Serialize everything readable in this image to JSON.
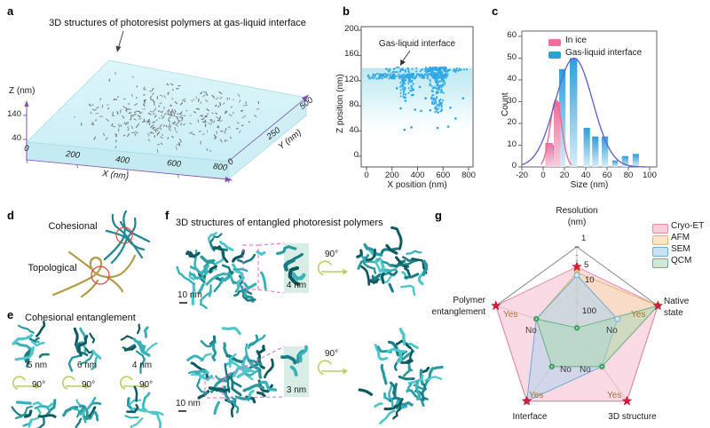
{
  "panels": {
    "a": {
      "letter": "a",
      "title": "3D structures of photoresist polymers at gas-liquid interface",
      "z_axis": {
        "label": "Z (nm)",
        "ticks": [
          "140",
          "40"
        ]
      },
      "x_axis": {
        "label": "X (nm)",
        "ticks": [
          "0",
          "200",
          "400",
          "600",
          "800"
        ]
      },
      "y_axis": {
        "label": "Y (nm)",
        "ticks": [
          "0",
          "250",
          "500"
        ]
      }
    },
    "b": {
      "letter": "b",
      "annotation": "Gas-liquid interface",
      "y_label": "Z position (nm)",
      "y_ticks": [
        "200",
        "160",
        "120",
        "80",
        "40",
        "0"
      ],
      "x_label": "X position (nm)",
      "x_ticks": [
        "0",
        "200",
        "400",
        "600",
        "800"
      ]
    },
    "c": {
      "letter": "c",
      "y_label": "Count",
      "y_ticks": [
        "60",
        "50",
        "40",
        "30",
        "20",
        "10",
        "0"
      ],
      "x_label": "Size (nm)",
      "x_ticks": [
        "-20",
        "0",
        "20",
        "40",
        "60",
        "80",
        "100"
      ]
    },
    "d": {
      "letter": "d",
      "label_cohesional": "Cohesional",
      "label_topological": "Topological"
    },
    "e": {
      "letter": "e",
      "title": "Cohesional entanglement",
      "rotation_label": "90°",
      "sizes": [
        "5 nm",
        "6 nm",
        "4 nm"
      ]
    },
    "f": {
      "letter": "f",
      "title": "3D structures of entangled photoresist polymers",
      "rotation_label": "90°",
      "scale_label": "10 nm",
      "inset_labels": [
        "4 nm",
        "3 nm"
      ]
    },
    "g": {
      "letter": "g",
      "axis_titles": {
        "resolution_1": "Resolution",
        "resolution_2": "(nm)",
        "native_1": "Native",
        "native_2": "state",
        "polymer_1": "Polymer",
        "polymer_2": "entanglement",
        "interface": "Interface",
        "structure3d": "3D structure"
      }
    }
  },
  "chart_data": [
    {
      "id": "a",
      "type": "scatter",
      "subtype": "3d-surface-view",
      "title": "3D structures of photoresist polymers at gas-liquid interface",
      "xlabel": "X (nm)",
      "xticks": [
        0,
        200,
        400,
        600,
        800
      ],
      "ylabel": "Y (nm)",
      "yticks": [
        0,
        250,
        500
      ],
      "zlabel": "Z (nm)",
      "zticks": [
        140,
        40
      ],
      "description": "Cyan slab (ice layer) viewed in perspective with ~300 gray polymer specks scattered over its top surface",
      "speck_count": 300,
      "slab_color": "#d9f4f8",
      "speck_colors": [
        "#8a8a8a",
        "#6e6e6e",
        "#9c9c9c"
      ]
    },
    {
      "id": "b",
      "type": "scatter",
      "xlabel": "X position (nm)",
      "xlim": [
        0,
        800
      ],
      "xticks": [
        0,
        200,
        400,
        600,
        800
      ],
      "ylabel": "Z position (nm)",
      "ylim": [
        0,
        200
      ],
      "yticks": [
        0,
        40,
        80,
        120,
        160,
        200
      ],
      "annotation": {
        "text": "Gas-liquid interface",
        "points_to_z": 140
      },
      "point_color": "#2aa6e8",
      "band": {
        "z_top": 140,
        "z_bottom": 33,
        "color": "#bfe9f2"
      },
      "clusters": [
        {
          "name": "interface-line",
          "x": [
            8,
            640
          ],
          "z": [
            123,
            131
          ],
          "n": 170
        },
        {
          "name": "interface-top-row",
          "x": [
            150,
            792
          ],
          "z": [
            133,
            141
          ],
          "n": 75
        },
        {
          "name": "plume-1",
          "x": [
            262,
            308
          ],
          "z": [
            92,
            127
          ],
          "n": 42
        },
        {
          "name": "plume-2",
          "x": [
            328,
            368
          ],
          "z": [
            97,
            132
          ],
          "n": 30
        },
        {
          "name": "plume-main",
          "x": [
            478,
            628
          ],
          "z": [
            68,
            141
          ],
          "n": 210,
          "taper": true
        }
      ],
      "sparse_points": [
        [
          268,
          76
        ],
        [
          297,
          42
        ],
        [
          352,
          46
        ],
        [
          305,
          88
        ],
        [
          428,
          72
        ],
        [
          499,
          73
        ],
        [
          557,
          45
        ],
        [
          572,
          88
        ],
        [
          640,
          47
        ],
        [
          657,
          77
        ],
        [
          698,
          60
        ],
        [
          757,
          92
        ],
        [
          380,
          74
        ],
        [
          463,
          92
        ],
        [
          418,
          110
        ],
        [
          238,
          108
        ]
      ]
    },
    {
      "id": "c",
      "type": "bar",
      "xlabel": "Size (nm)",
      "xlim": [
        -20,
        100
      ],
      "xticks": [
        -20,
        0,
        20,
        40,
        60,
        80,
        100
      ],
      "ylabel": "Count",
      "ylim": [
        0,
        60
      ],
      "yticks": [
        0,
        10,
        20,
        30,
        40,
        50,
        60
      ],
      "legend": [
        "In ice",
        "Gas-liquid interface"
      ],
      "colors": {
        "in_ice": "#f16d9d",
        "interface": "#2d9fd9"
      },
      "bars": [
        {
          "series": "Gas-liquid interface",
          "x0": 9,
          "x1": 14,
          "count": 10
        },
        {
          "series": "Gas-liquid interface",
          "x0": 15,
          "x1": 21,
          "count": 45
        },
        {
          "series": "Gas-liquid interface",
          "x0": 25,
          "x1": 32,
          "count": 50
        },
        {
          "series": "Gas-liquid interface",
          "x0": 38,
          "x1": 44,
          "count": 18
        },
        {
          "series": "Gas-liquid interface",
          "x0": 46,
          "x1": 52,
          "count": 14
        },
        {
          "series": "Gas-liquid interface",
          "x0": 55,
          "x1": 61,
          "count": 14
        },
        {
          "series": "Gas-liquid interface",
          "x0": 65,
          "x1": 70,
          "count": 3
        },
        {
          "series": "Gas-liquid interface",
          "x0": 74,
          "x1": 80,
          "count": 5
        },
        {
          "series": "Gas-liquid interface",
          "x0": 84,
          "x1": 90,
          "count": 6
        },
        {
          "series": "In ice",
          "x0": 2,
          "x1": 9,
          "count": 11
        },
        {
          "series": "In ice",
          "x0": 10,
          "x1": 16,
          "count": 30
        }
      ],
      "fit_curves": [
        {
          "series": "In ice",
          "center": 12,
          "peak": 31,
          "sigma": 5.5,
          "range": [
            -2,
            27
          ],
          "color": "#ef6a88"
        },
        {
          "series": "Gas-liquid interface",
          "center": 29,
          "peak": 50,
          "sigma": 17.5,
          "range": [
            -20,
            97
          ],
          "color": "#6565cf"
        }
      ]
    },
    {
      "id": "g",
      "type": "radar",
      "axes": [
        {
          "label": "Resolution (nm)",
          "scale": "log",
          "outer_value": 1,
          "center_value": 1000,
          "ticks": [
            {
              "label": "1",
              "r": 1.0
            },
            {
              "label": "5",
              "r": 0.767
            },
            {
              "label": "10",
              "r": 0.667
            },
            {
              "label": "100",
              "r": 0.333
            }
          ]
        },
        {
          "label": "Native state",
          "outer_label": "Yes",
          "mid_label": "No"
        },
        {
          "label": "3D structure",
          "outer_label": "Yes",
          "mid_label": "No"
        },
        {
          "label": "Interface",
          "outer_label": "Yes",
          "mid_label": "No"
        },
        {
          "label": "Polymer entanglement",
          "outer_label": "Yes",
          "mid_label": "No"
        }
      ],
      "series": [
        {
          "name": "Cryo-ET",
          "legend_color": "#f9ccd8",
          "fill": "#f5b9cb",
          "stroke": "#e78aa6",
          "marker": "star",
          "marker_color": "#e31837",
          "values": {
            "resolution_nm": "5",
            "native_state": "Yes",
            "structure_3d": "Yes",
            "interface": "Yes",
            "polymer_entanglement": "Yes"
          },
          "r": [
            0.767,
            1,
            1,
            1,
            1
          ]
        },
        {
          "name": "AFM",
          "legend_color": "#f9e6c0",
          "fill": "#f6dfae",
          "stroke": "#ddb86a",
          "marker": "circle",
          "marker_color": "#eec268",
          "values": {
            "resolution_nm": "8",
            "native_state": "Yes",
            "structure_3d": "No",
            "interface": "No",
            "polymer_entanglement": "No"
          },
          "r": [
            0.7,
            1,
            0.5,
            0.5,
            0.5
          ]
        },
        {
          "name": "SEM",
          "legend_color": "#c9e2f6",
          "fill": "#abd3ef",
          "stroke": "#6fa9d4",
          "marker": "circle",
          "marker_color": "#cfe9fa",
          "values": {
            "resolution_nm": "10",
            "native_state": "No",
            "structure_3d": "No",
            "interface": "Yes",
            "polymer_entanglement": "No"
          },
          "r": [
            0.667,
            0.5,
            0.5,
            1,
            0.5
          ]
        },
        {
          "name": "QCM",
          "legend_color": "#cfe9d6",
          "fill": "#a9d9b9",
          "stroke": "#67b387",
          "marker": "circle",
          "marker_color": "#34a05e",
          "values": {
            "resolution_nm": ">100",
            "native_state": "Yes",
            "structure_3d": "No",
            "interface": "No",
            "polymer_entanglement": "No"
          },
          "r": [
            0.05,
            1,
            0.5,
            0.5,
            0.5
          ]
        }
      ],
      "legend_position": "top-right"
    }
  ],
  "style_colors": {
    "polymer_teal": [
      "#38b2b8",
      "#1b7d84",
      "#4cc7cc",
      "#0f5a60",
      "#2a9aa1"
    ],
    "strand_teal": "#1e8790",
    "strand_olive": "#b19d49",
    "highlight_circle_red": "#e0443f",
    "rotate_arrow_green": "#b6cf5e",
    "dashed_magenta": "#f063c8",
    "inset_bg": "#d7ede6",
    "axis_purple": "#8a4fae"
  }
}
